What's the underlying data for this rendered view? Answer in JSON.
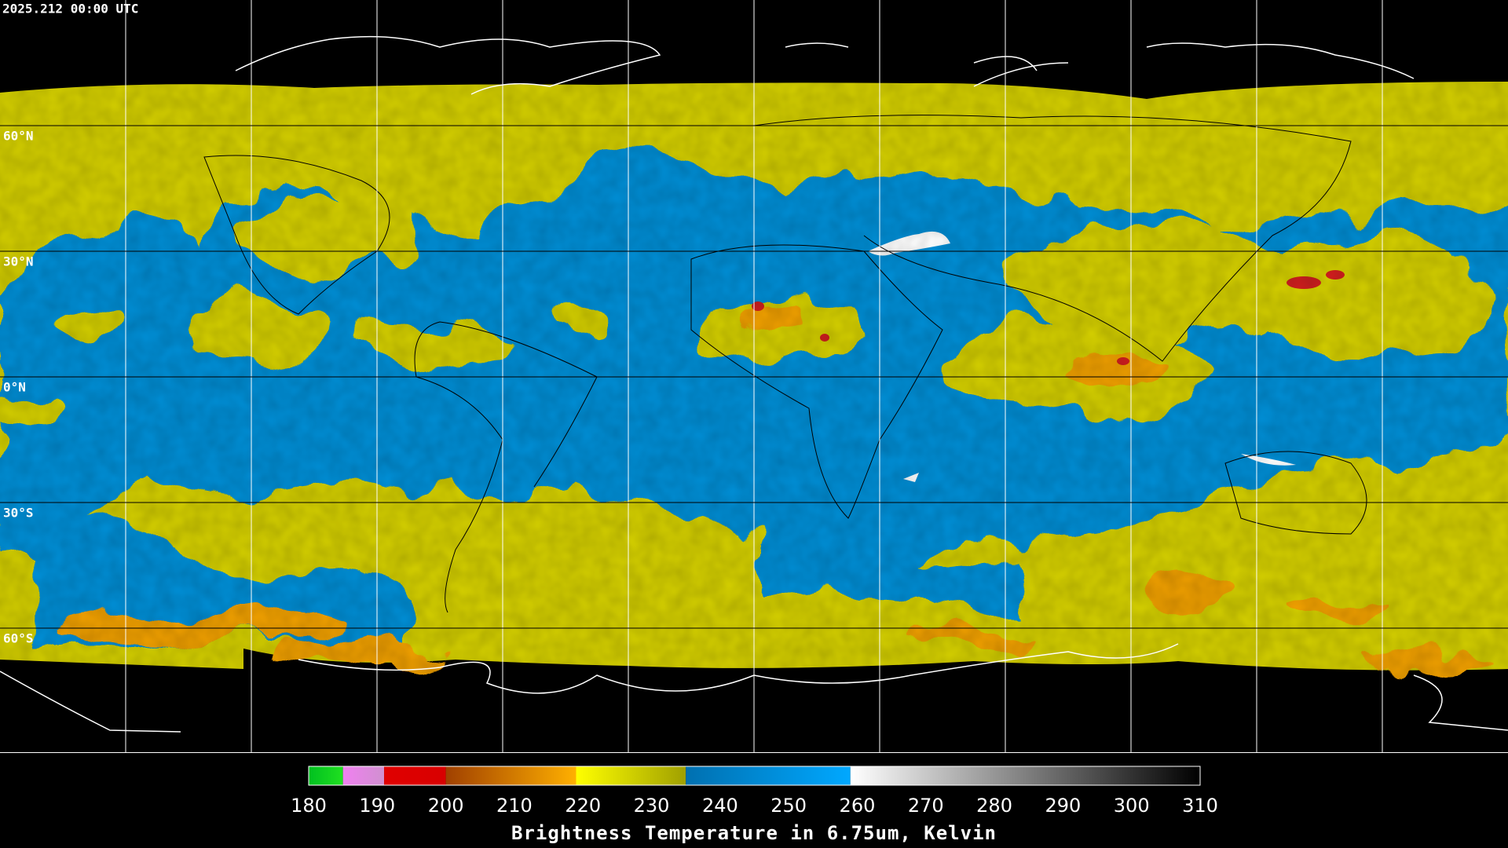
{
  "timestamp": "2025.212 00:00 UTC",
  "latitude_labels": [
    "60°N",
    "30°N",
    "0°N",
    "30°S",
    "60°S"
  ],
  "colorbar": {
    "label": "Brightness Temperature in 6.75um, Kelvin",
    "range": [
      180,
      310
    ],
    "ticks": [
      180,
      190,
      200,
      210,
      220,
      230,
      240,
      250,
      260,
      270,
      280,
      290,
      300,
      310
    ],
    "segments": [
      {
        "from": 180,
        "to": 185,
        "colors": [
          "#00c020",
          "#20e020"
        ]
      },
      {
        "from": 185,
        "to": 191,
        "colors": [
          "#f080f0",
          "#d090d0"
        ]
      },
      {
        "from": 191,
        "to": 200,
        "colors": [
          "#e00000",
          "#d80000"
        ]
      },
      {
        "from": 200,
        "to": 219,
        "colors": [
          "#a04000",
          "#ffb000"
        ]
      },
      {
        "from": 219,
        "to": 235,
        "colors": [
          "#ffff00",
          "#a0a000"
        ]
      },
      {
        "from": 235,
        "to": 259,
        "colors": [
          "#0070b0",
          "#00a8ff"
        ]
      },
      {
        "from": 259,
        "to": 310,
        "colors": [
          "#ffffff",
          "#000000"
        ]
      }
    ]
  }
}
